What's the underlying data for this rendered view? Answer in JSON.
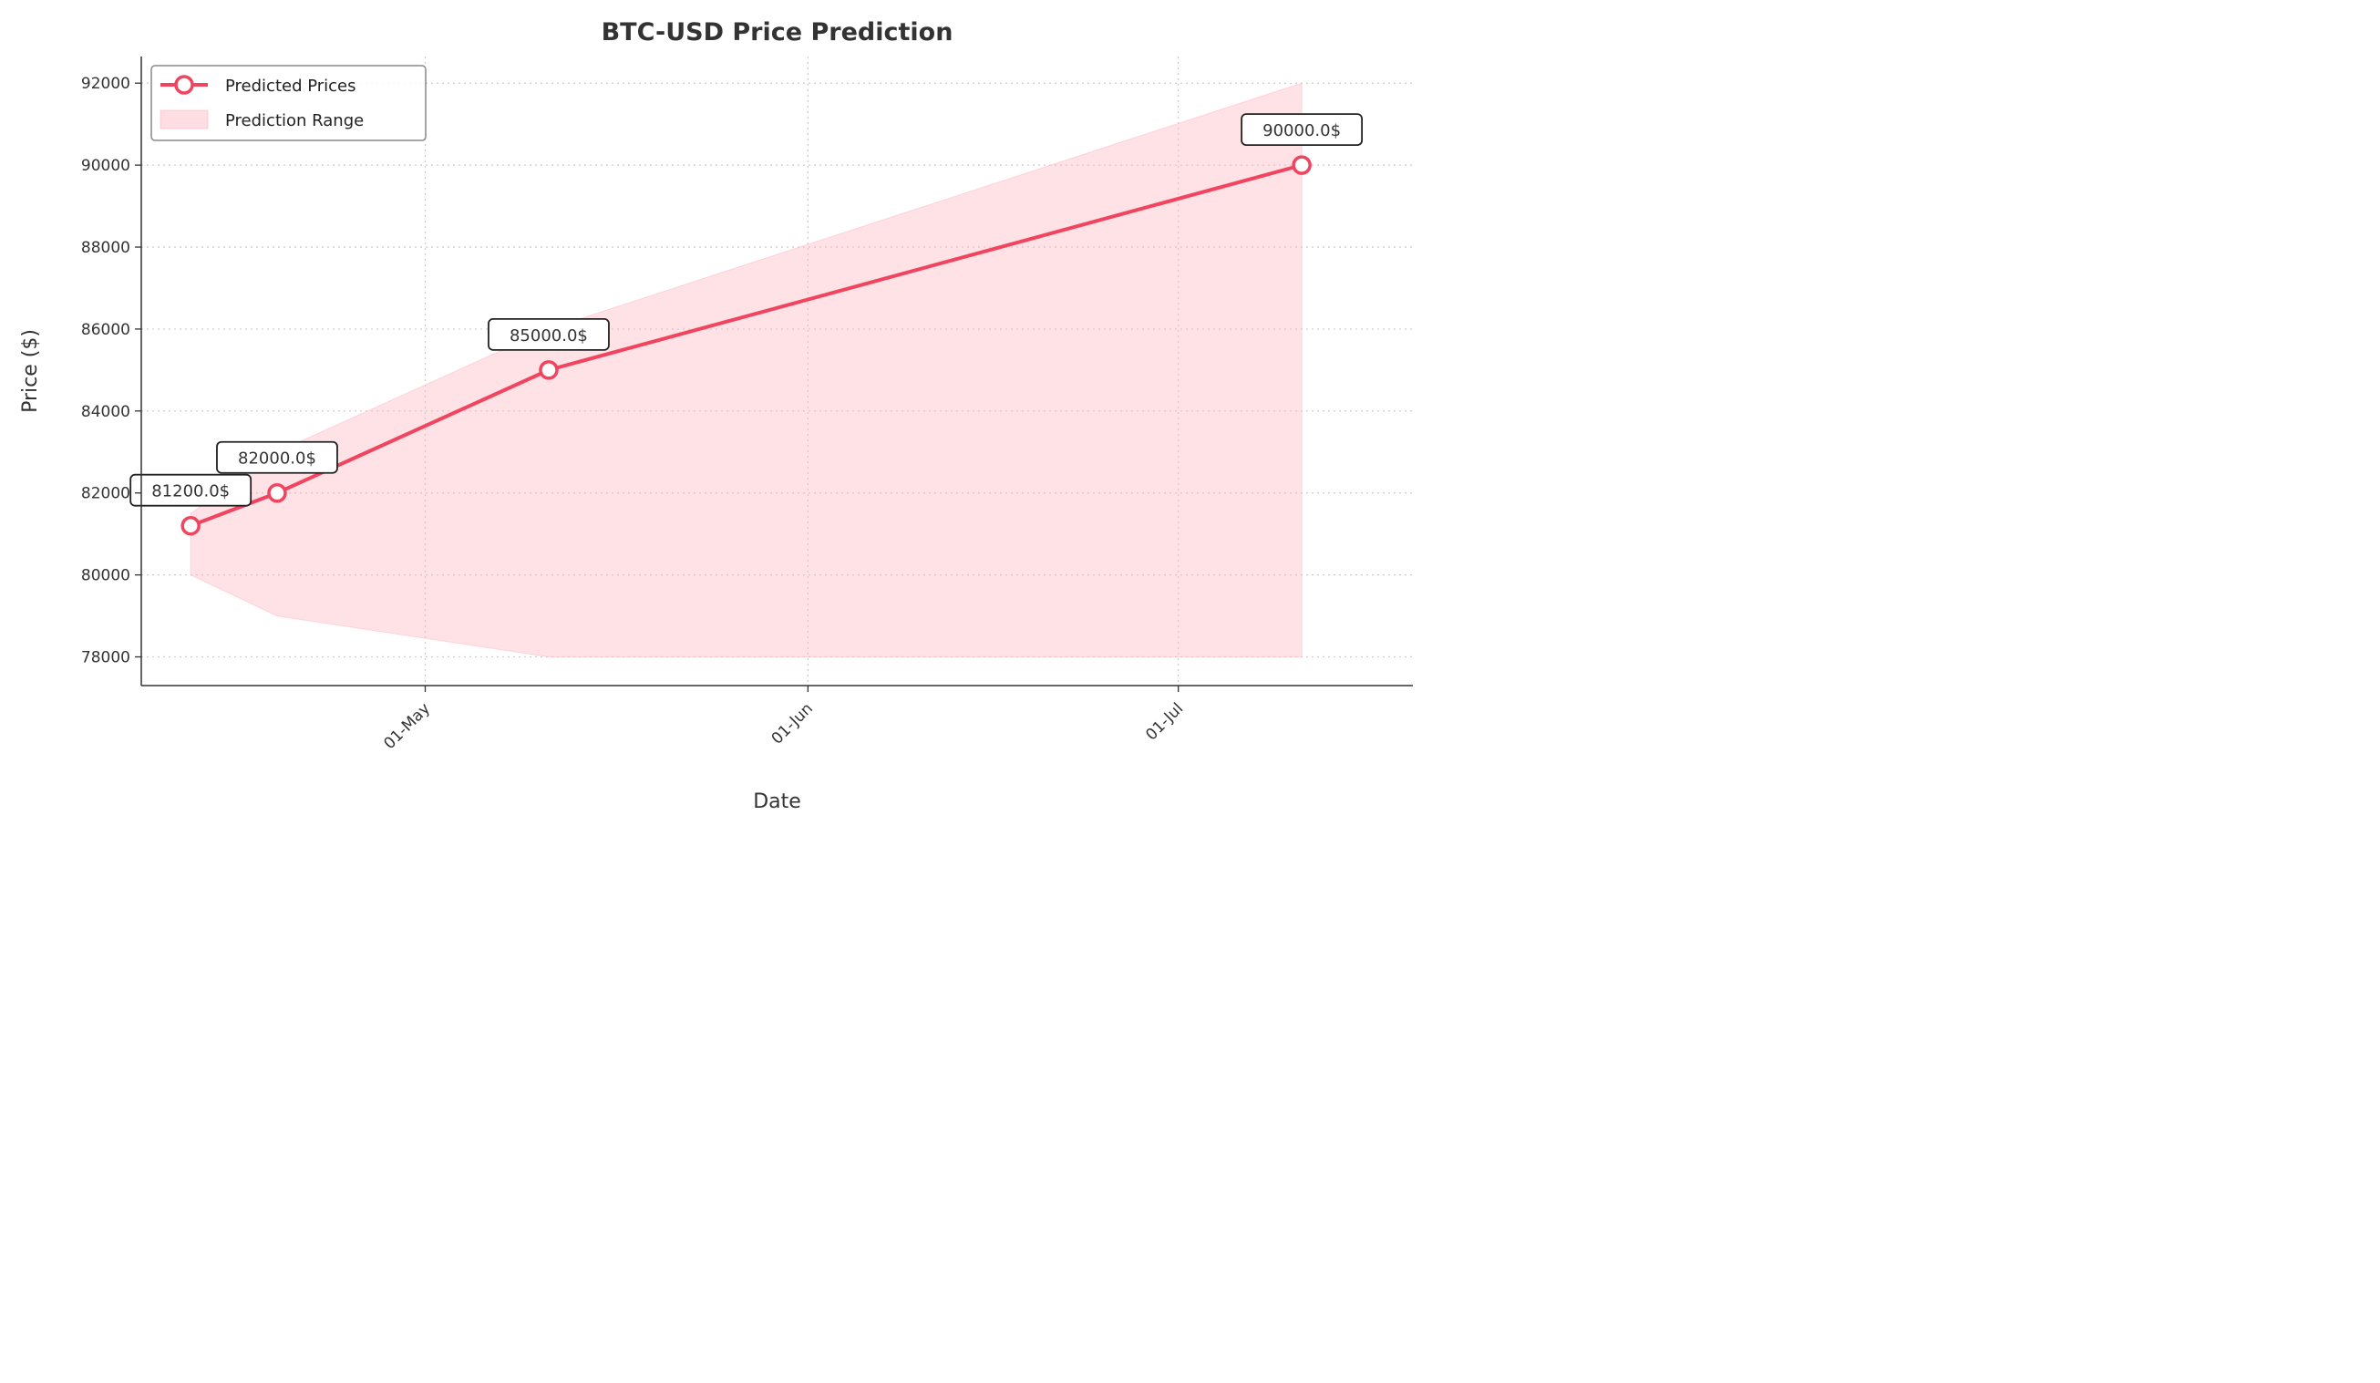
{
  "chart_data": {
    "type": "line",
    "title": "BTC-USD Price Prediction",
    "xlabel": "Date",
    "ylabel": "Price ($)",
    "x_ticks": [
      "01-May",
      "01-Jun",
      "01-Jul"
    ],
    "y_ticks": [
      78000,
      80000,
      82000,
      84000,
      86000,
      88000,
      90000,
      92000
    ],
    "ylim": [
      77300,
      92650
    ],
    "xlim": [
      "2025-04-08",
      "2025-07-20"
    ],
    "grid": true,
    "legend_position": "top-left",
    "x": [
      "2025-04-12",
      "2025-04-19",
      "2025-05-11",
      "2025-07-11"
    ],
    "series": [
      {
        "name": "Predicted Prices",
        "values": [
          81200,
          82000,
          85000,
          90000
        ],
        "data_labels": [
          "81200.0$",
          "82000.0$",
          "85000.0$",
          "90000.0$"
        ],
        "color": "#f0445f"
      }
    ],
    "range": {
      "name": "Prediction Range",
      "lower": [
        80000,
        79000,
        78000,
        78000
      ],
      "upper": [
        81500,
        83000,
        86000,
        92000
      ],
      "color": "#ffb6c1"
    }
  }
}
